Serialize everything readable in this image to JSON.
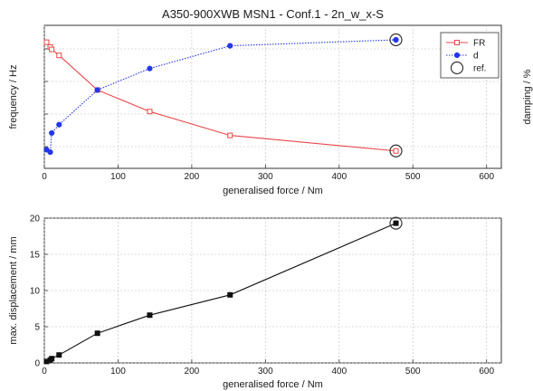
{
  "chart_data": [
    {
      "type": "line",
      "title": "A350-900XWB MSN1 - Conf.1 - 2n_w_x-S",
      "xlabel": "generalised force / Nm",
      "ylabel_left": "frequency / Hz",
      "ylabel_right": "damping / %",
      "xlim": [
        0,
        620
      ],
      "xticks": [
        "0",
        "100",
        "200",
        "300",
        "400",
        "500",
        "600"
      ],
      "y_tick_labels_shown": false,
      "grid": true,
      "legend_position": "top-right",
      "x": [
        3,
        8,
        10,
        20,
        72,
        143,
        252,
        477
      ],
      "series": [
        {
          "name": "FR",
          "axis": "left",
          "color": "#e8474a",
          "marker": "open-square",
          "line": "solid",
          "values": [
            0.98,
            0.94,
            0.92,
            0.87,
            0.58,
            0.4,
            0.2,
            0.07
          ]
        },
        {
          "name": "d",
          "axis": "right",
          "color": "#2437e6",
          "marker": "filled-circle",
          "line": "dotted",
          "values": [
            0.08,
            0.06,
            0.22,
            0.29,
            0.58,
            0.76,
            0.95,
            1.0
          ]
        }
      ],
      "reference": {
        "name": "ref.",
        "x": 477,
        "marker": "open-circle"
      }
    },
    {
      "type": "line",
      "title": "",
      "xlabel": "generalised force / Nm",
      "ylabel": "max. displacement / mm",
      "xlim": [
        0,
        620
      ],
      "ylim": [
        0,
        20
      ],
      "xticks": [
        "0",
        "100",
        "200",
        "300",
        "400",
        "500",
        "600"
      ],
      "yticks": [
        "0",
        "5",
        "10",
        "15",
        "20"
      ],
      "grid": true,
      "x": [
        3,
        8,
        10,
        20,
        72,
        143,
        252,
        477
      ],
      "series": [
        {
          "color": "#111111",
          "marker": "filled-square",
          "line": "solid",
          "values": [
            0.2,
            0.4,
            0.6,
            1.1,
            4.1,
            6.6,
            9.4,
            19.3
          ]
        }
      ],
      "reference": {
        "name": "ref.",
        "x": 477,
        "marker": "open-circle"
      }
    }
  ]
}
